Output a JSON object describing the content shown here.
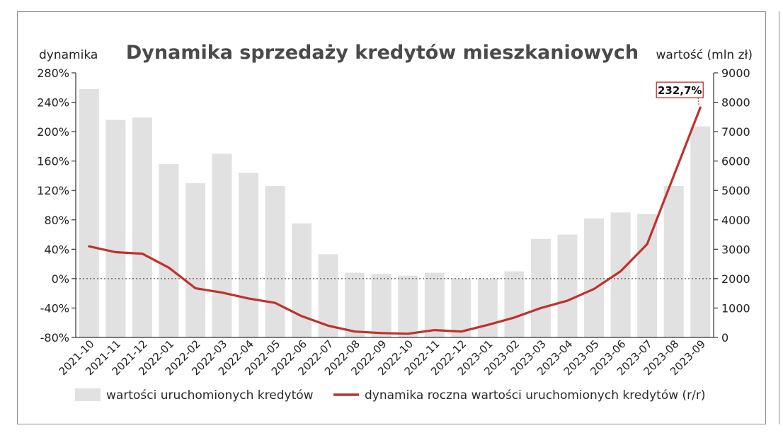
{
  "chart_data": {
    "type": "bar+line",
    "title": "Dynamika sprzedaży kredytów mieszkaniowych",
    "ylabel_left": "dynamika",
    "ylabel_right": "wartość (mln zł)",
    "ylim_left": [
      -80,
      280
    ],
    "ylim_right": [
      0,
      9000
    ],
    "yticks_left": [
      "280%",
      "240%",
      "200%",
      "160%",
      "120%",
      "80%",
      "40%",
      "0%",
      "-40%",
      "-80%"
    ],
    "yticks_right": [
      "9000",
      "8000",
      "7000",
      "6000",
      "5000",
      "4000",
      "3000",
      "2000",
      "1000",
      "0"
    ],
    "categories": [
      "2021-10",
      "2021-11",
      "2021-12",
      "2022-01",
      "2022-02",
      "2022-03",
      "2022-04",
      "2022-05",
      "2022-06",
      "2022-07",
      "2022-08",
      "2022-09",
      "2022-10",
      "2022-11",
      "2022-12",
      "2023-01",
      "2023-02",
      "2023-03",
      "2023-04",
      "2023-05",
      "2023-06",
      "2023-07",
      "2023-08",
      "2023-09"
    ],
    "series": [
      {
        "name": "wartości uruchomionych kredytów",
        "type": "bar",
        "axis": "right",
        "color": "#e1e1e2",
        "values": [
          8450,
          7400,
          7480,
          5900,
          5250,
          6250,
          5600,
          5150,
          3880,
          2830,
          2200,
          2160,
          2100,
          2200,
          2000,
          2000,
          2250,
          3350,
          3500,
          4050,
          4250,
          4200,
          5150,
          7180
        ]
      },
      {
        "name": "dynamika roczna wartości uruchomionych kredytów (r/r)",
        "type": "line",
        "axis": "left",
        "color": "#c0312b",
        "values": [
          44,
          36,
          34,
          15,
          -13,
          -19,
          -27,
          -33,
          -51,
          -64,
          -72,
          -74,
          -75,
          -70,
          -72,
          -63,
          -53,
          -40,
          -30,
          -14,
          10,
          47,
          140,
          232.7
        ]
      }
    ],
    "annotation": {
      "text": "232,7%",
      "series": 1,
      "index": 23
    },
    "zero_line": "dotted",
    "grid": false,
    "legend_position": "bottom"
  }
}
